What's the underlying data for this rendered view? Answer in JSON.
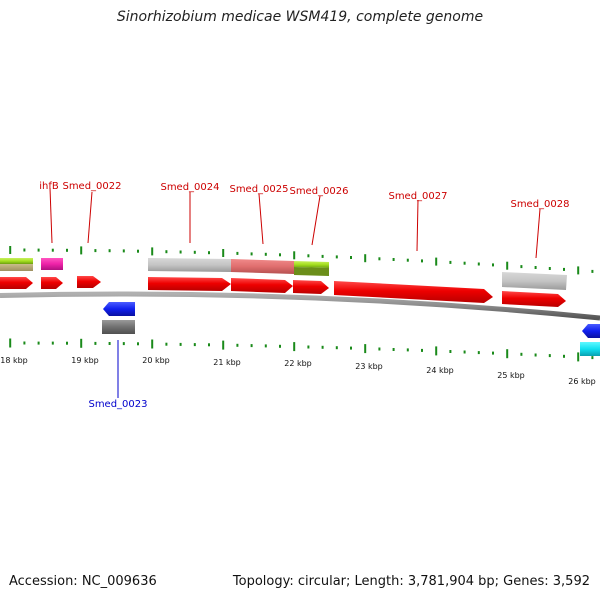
{
  "title": "Sinorhizobium medicae WSM419, complete genome",
  "footer": {
    "accession": "Accession: NC_009636",
    "summary": "Topology: circular; Length: 3,781,904 bp; Genes: 3,592"
  },
  "colors": {
    "forward_label": "#cc0000",
    "reverse_label": "#0000cc",
    "cds": "#ff0000",
    "tick": "#1a8a1a",
    "backbone": "#888888"
  },
  "ruler": {
    "labels": [
      "18 kbp",
      "19 kbp",
      "20 kbp",
      "21 kbp",
      "22 kbp",
      "23 kbp",
      "24 kbp",
      "25 kbp",
      "26 kbp"
    ]
  },
  "gene_labels": {
    "forward": [
      "ihfB",
      "Smed_0022",
      "Smed_0024",
      "Smed_0025",
      "Smed_0026",
      "Smed_0027",
      "Smed_0028"
    ],
    "reverse": [
      "Smed_0023"
    ]
  }
}
